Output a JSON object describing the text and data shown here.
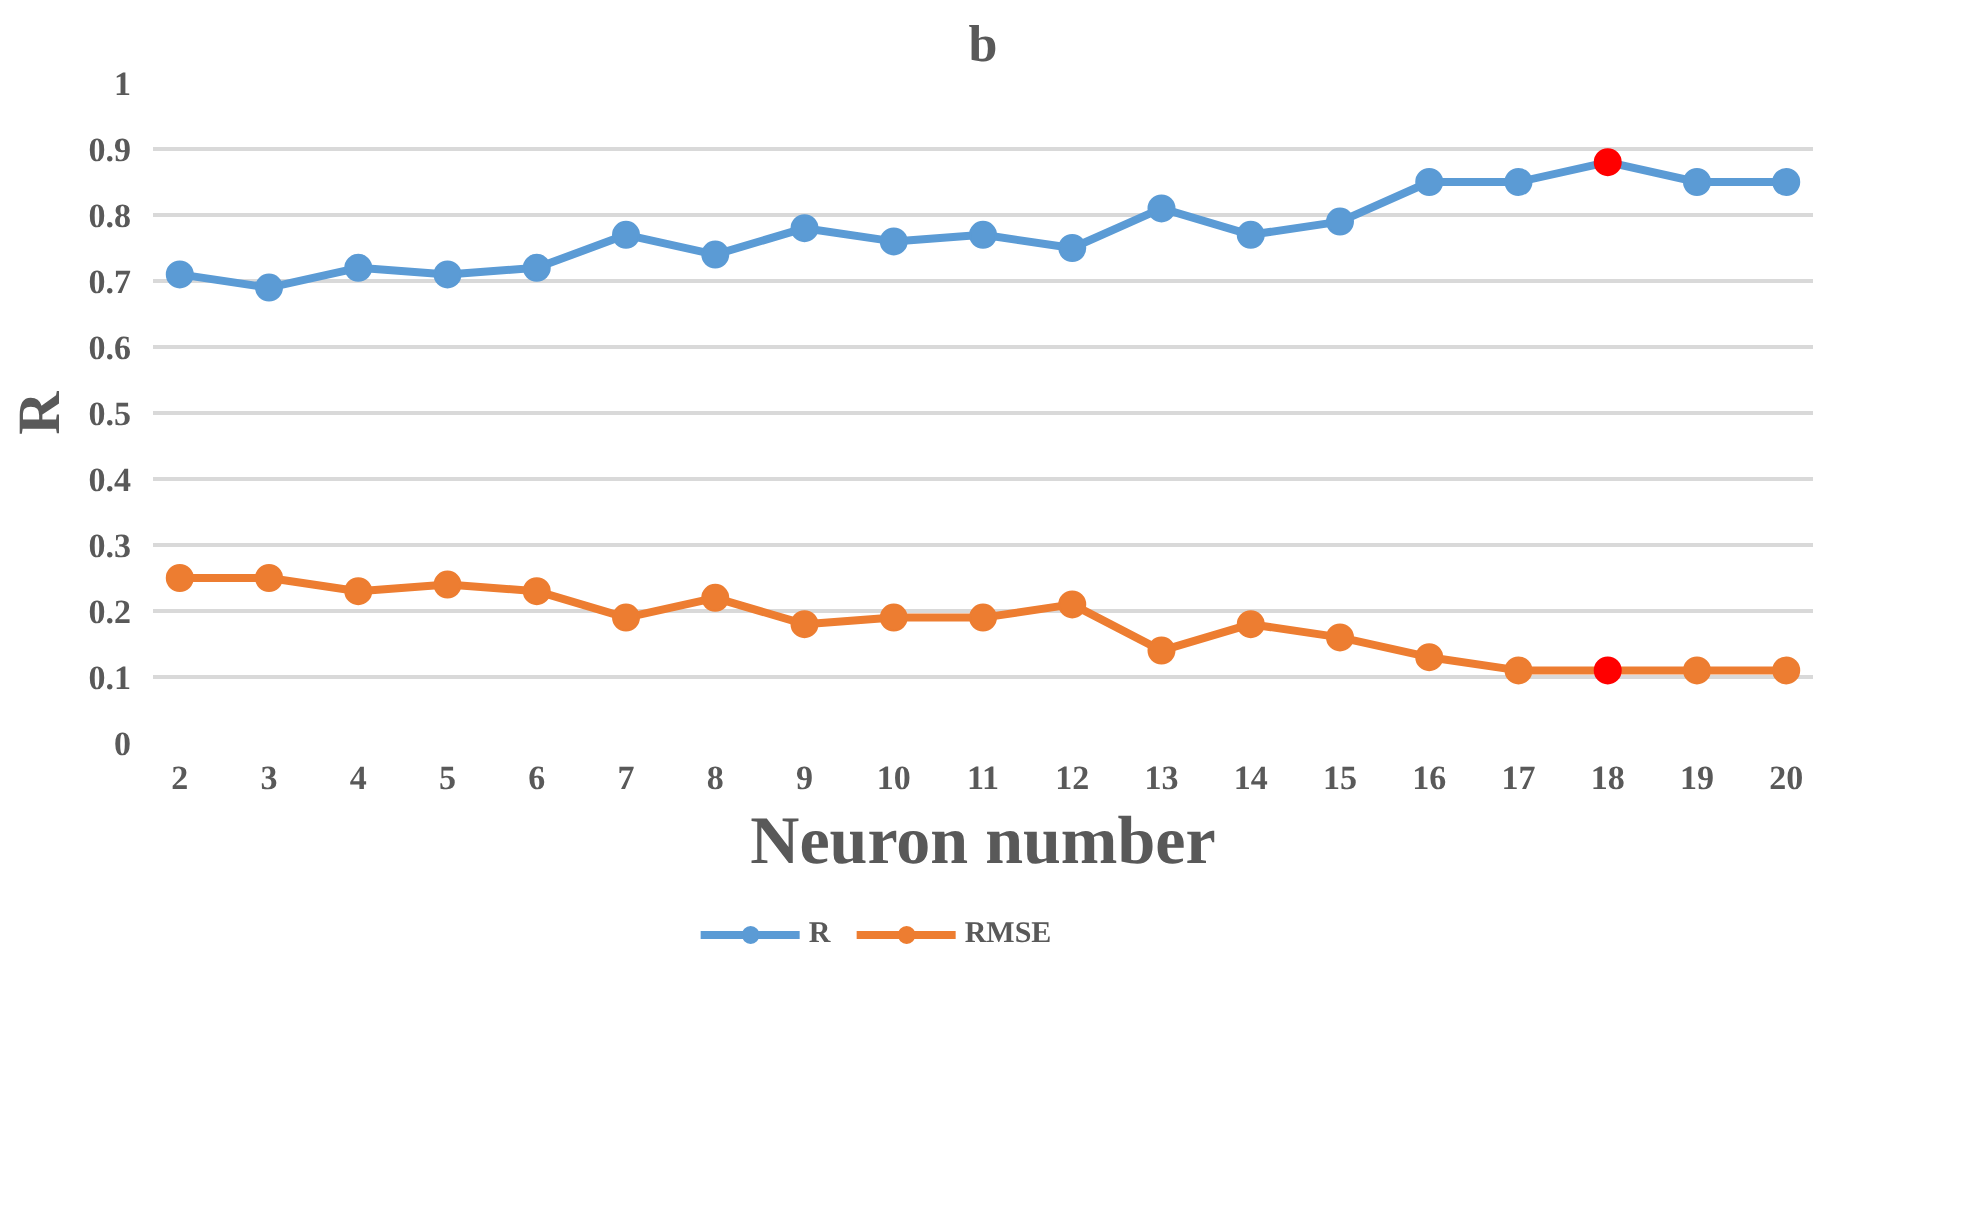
{
  "chart_data": {
    "type": "line",
    "title": "b",
    "xlabel": "Neuron number",
    "ylabel": "R",
    "categories": [
      "2",
      "3",
      "4",
      "5",
      "6",
      "7",
      "8",
      "9",
      "10",
      "11",
      "12",
      "13",
      "14",
      "15",
      "16",
      "17",
      "18",
      "19",
      "20"
    ],
    "series": [
      {
        "name": "R",
        "color": "#5b9bd5",
        "colors": [
          "#5b9bd5",
          "#5b9bd5",
          "#5b9bd5",
          "#5b9bd5",
          "#5b9bd5",
          "#5b9bd5",
          "#5b9bd5",
          "#5b9bd5",
          "#5b9bd5",
          "#5b9bd5",
          "#5b9bd5",
          "#5b9bd5",
          "#5b9bd5",
          "#5b9bd5",
          "#5b9bd5",
          "#5b9bd5",
          "#ff0000",
          "#5b9bd5",
          "#5b9bd5"
        ],
        "values": [
          0.71,
          0.69,
          0.72,
          0.71,
          0.72,
          0.77,
          0.74,
          0.78,
          0.76,
          0.77,
          0.75,
          0.81,
          0.77,
          0.79,
          0.85,
          0.85,
          0.88,
          0.85,
          0.85
        ]
      },
      {
        "name": "RMSE",
        "color": "#ed7d31",
        "colors": [
          "#ed7d31",
          "#ed7d31",
          "#ed7d31",
          "#ed7d31",
          "#ed7d31",
          "#ed7d31",
          "#ed7d31",
          "#ed7d31",
          "#ed7d31",
          "#ed7d31",
          "#ed7d31",
          "#ed7d31",
          "#ed7d31",
          "#ed7d31",
          "#ed7d31",
          "#ed7d31",
          "#ff0000",
          "#ed7d31",
          "#ed7d31"
        ],
        "values": [
          0.25,
          0.25,
          0.23,
          0.24,
          0.23,
          0.19,
          0.22,
          0.18,
          0.19,
          0.19,
          0.21,
          0.14,
          0.18,
          0.16,
          0.13,
          0.11,
          0.11,
          0.11,
          0.11
        ]
      }
    ],
    "ylim": [
      0,
      1
    ],
    "yticks": [
      0,
      0.1,
      0.2,
      0.3,
      0.4,
      0.5,
      0.6,
      0.7,
      0.8,
      0.9,
      1
    ],
    "grid": "y",
    "legend": "bottom",
    "marker": "circle",
    "line_style": "solid"
  }
}
